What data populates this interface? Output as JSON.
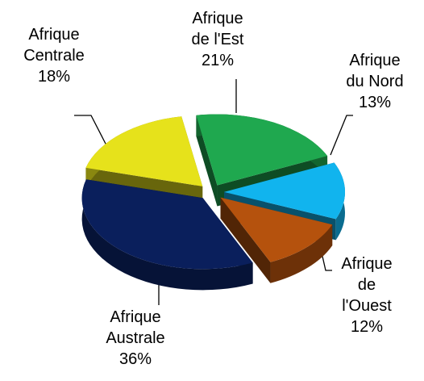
{
  "chart_data": {
    "type": "pie",
    "categories": [
      "Afrique de l'Est",
      "Afrique du Nord",
      "Afrique de l'Ouest",
      "Afrique Australe",
      "Afrique Centrale"
    ],
    "values": [
      21,
      13,
      12,
      36,
      18
    ],
    "value_labels": [
      "21%",
      "13%",
      "12%",
      "36%",
      "18%"
    ],
    "colors": [
      "#1fa84f",
      "#11b4ee",
      "#b5520d",
      "#0a1f5c",
      "#e6e21b"
    ]
  }
}
